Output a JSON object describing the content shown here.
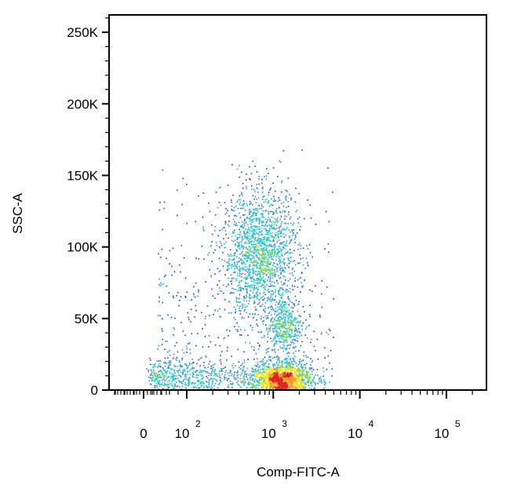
{
  "chart_data": {
    "type": "scatter",
    "subtype": "flow-cytometry-density-dot-plot",
    "xlabel": "Comp-FITC-A",
    "ylabel": "SSC-A",
    "x_scale": "biexponential",
    "y_scale": "linear",
    "ylim": [
      0,
      262144
    ],
    "y_ticks": [
      {
        "value": 0,
        "label": "0"
      },
      {
        "value": 50000,
        "label": "50K"
      },
      {
        "value": 100000,
        "label": "100K"
      },
      {
        "value": 150000,
        "label": "150K"
      },
      {
        "value": 200000,
        "label": "200K"
      },
      {
        "value": 250000,
        "label": "250K"
      }
    ],
    "x_ticks": [
      {
        "value": 0,
        "base": "0",
        "exp": ""
      },
      {
        "value": 100,
        "base": "10",
        "exp": "2"
      },
      {
        "value": 1000,
        "base": "10",
        "exp": "3"
      },
      {
        "value": 10000,
        "base": "10",
        "exp": "4"
      },
      {
        "value": 100000,
        "base": "10",
        "exp": "5"
      }
    ],
    "color_scale": [
      "#1f3fb4",
      "#2c8fd8",
      "#2bc4c4",
      "#7ed35a",
      "#f4e21c",
      "#f29a1c",
      "#e21f1f"
    ],
    "populations": [
      {
        "x_center": 700,
        "y_center": 95000,
        "x_spread_decades": 0.22,
        "y_spread": 22000,
        "relative_density": 1.0
      },
      {
        "x_center": 1200,
        "y_center": 8000,
        "x_spread_decades": 0.18,
        "y_spread": 6000,
        "relative_density": 0.9
      },
      {
        "x_center": 1300,
        "y_center": 45000,
        "x_spread_decades": 0.1,
        "y_spread": 10000,
        "relative_density": 0.25
      },
      {
        "x_center": 90,
        "y_center": 10000,
        "x_spread_decades": 0.4,
        "y_spread": 6000,
        "relative_density": 0.3
      }
    ],
    "grid": false,
    "legend": "none"
  }
}
